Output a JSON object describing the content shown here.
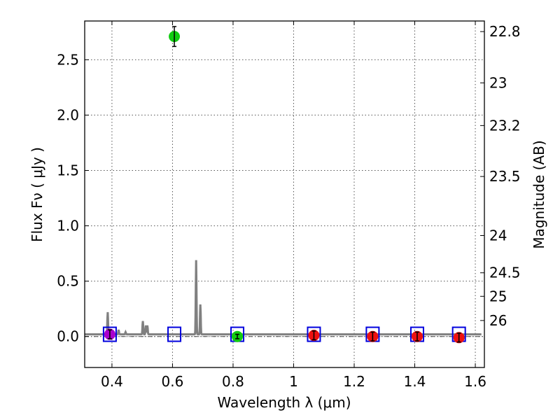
{
  "chart_data": {
    "type": "scatter",
    "xlabel": "Wavelength  λ (μm)",
    "ylabel": "Flux  Fν  ( μJy )",
    "y2label": "Magnitude (AB)",
    "xlim": [
      0.31,
      1.63
    ],
    "ylim": [
      -0.28,
      2.85
    ],
    "xticks": [
      0.4,
      0.6,
      0.8,
      1.0,
      1.2,
      1.4,
      1.6
    ],
    "xtick_labels": [
      "0.4",
      "0.6",
      "0.8",
      "1",
      "1.2",
      "1.4",
      "1.6"
    ],
    "yticks": [
      0.0,
      0.5,
      1.0,
      1.5,
      2.0,
      2.5
    ],
    "ytick_labels": [
      "0.0",
      "0.5",
      "1.0",
      "1.5",
      "2.0",
      "2.5"
    ],
    "mag_ticks": [
      {
        "mag": 22.8,
        "label": "22.8"
      },
      {
        "mag": 23.0,
        "label": "23"
      },
      {
        "mag": 23.2,
        "label": "23.2"
      },
      {
        "mag": 23.5,
        "label": "23.5"
      },
      {
        "mag": 24.0,
        "label": "24"
      },
      {
        "mag": 24.5,
        "label": "24.5"
      },
      {
        "mag": 25.0,
        "label": "25"
      },
      {
        "mag": 26.0,
        "label": "26"
      }
    ],
    "grid": true,
    "zero_line": 0.0,
    "photometry": [
      {
        "x": 0.393,
        "y": 0.02,
        "err": 0.04,
        "color": "#aa00cc"
      },
      {
        "x": 0.606,
        "y": 2.71,
        "err": 0.09,
        "color": "#11cc11"
      },
      {
        "x": 0.814,
        "y": 0.0,
        "err": 0.02,
        "color": "#11cc11"
      },
      {
        "x": 1.067,
        "y": 0.01,
        "err": 0.04,
        "color": "#ee1111"
      },
      {
        "x": 1.261,
        "y": 0.0,
        "err": 0.04,
        "color": "#ee1111"
      },
      {
        "x": 1.408,
        "y": 0.0,
        "err": 0.04,
        "color": "#ee1111"
      },
      {
        "x": 1.546,
        "y": -0.01,
        "err": 0.04,
        "color": "#ee1111"
      }
    ],
    "model_bands": [
      {
        "x": 0.393,
        "y": 0.02
      },
      {
        "x": 0.606,
        "y": 0.02
      },
      {
        "x": 0.814,
        "y": 0.02
      },
      {
        "x": 1.067,
        "y": 0.02
      },
      {
        "x": 1.261,
        "y": 0.02
      },
      {
        "x": 1.408,
        "y": 0.02
      },
      {
        "x": 1.546,
        "y": 0.02
      }
    ],
    "model_spectrum": {
      "baseline": 0.02,
      "lines": [
        {
          "x": 0.386,
          "peak": 0.22
        },
        {
          "x": 0.422,
          "peak": 0.06
        },
        {
          "x": 0.445,
          "peak": 0.04
        },
        {
          "x": 0.502,
          "peak": 0.14
        },
        {
          "x": 0.512,
          "peak": 0.1
        },
        {
          "x": 0.517,
          "peak": 0.1
        },
        {
          "x": 0.678,
          "peak": 0.69
        },
        {
          "x": 0.692,
          "peak": 0.29
        }
      ]
    },
    "colors": {
      "spectrum": "#808080",
      "band_box": "#0000dd",
      "errorbar": "#000000",
      "zero_line": "#444444"
    }
  }
}
